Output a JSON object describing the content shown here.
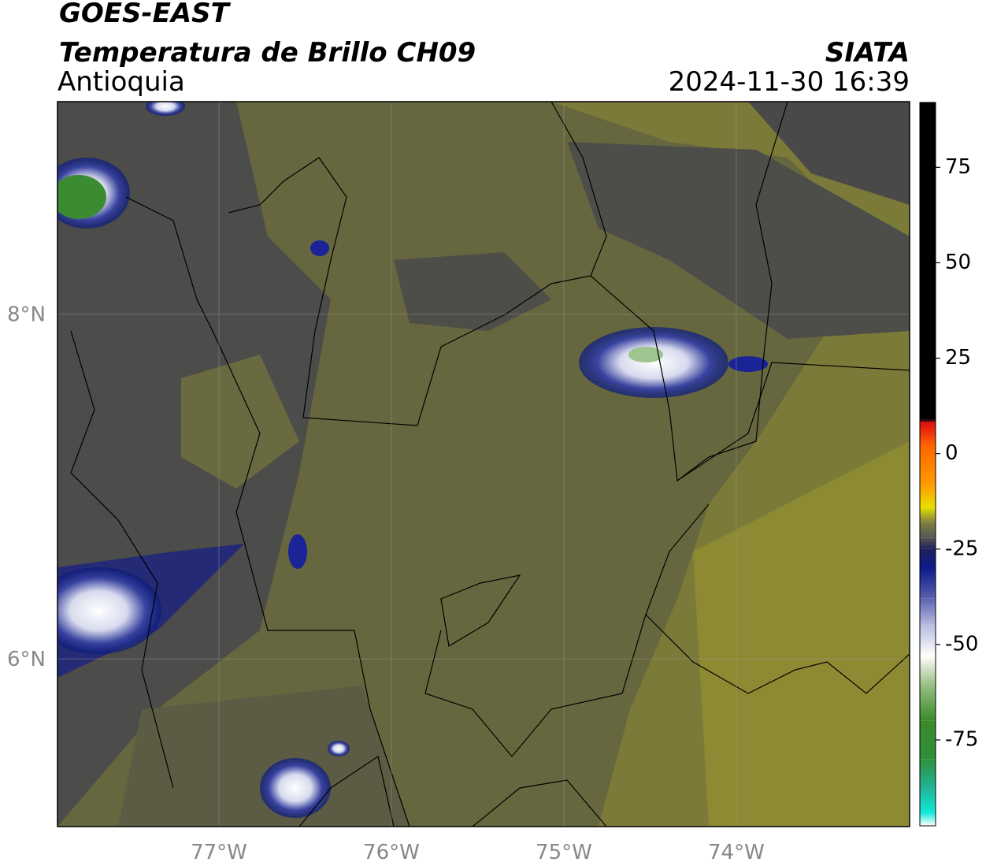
{
  "header": {
    "title": "GOES-EAST",
    "subtitle": "Temperatura de Brillo CH09",
    "region": "Antioquia",
    "source": "SIATA",
    "datetime": "2024-11-30 16:39"
  },
  "map": {
    "xlim": [
      -77.936,
      -72.995
    ],
    "ylim": [
      5.027,
      9.233
    ],
    "xticks": [
      {
        "value": -77,
        "label": "77°W"
      },
      {
        "value": -76,
        "label": "76°W"
      },
      {
        "value": -75,
        "label": "75°W"
      },
      {
        "value": -74,
        "label": "74°W"
      }
    ],
    "yticks": [
      {
        "value": 6,
        "label": "6°N"
      },
      {
        "value": 8,
        "label": "8°N"
      }
    ],
    "grid": true
  },
  "colorbar": {
    "clim": [
      -97.5,
      92
    ],
    "ticks": [
      -75,
      -50,
      -25,
      0,
      25,
      50,
      75
    ],
    "stops": [
      {
        "value": -97.5,
        "color": "#ffffff"
      },
      {
        "value": -94,
        "color": "#10e8d8"
      },
      {
        "value": -88,
        "color": "#1fb89a"
      },
      {
        "value": -80,
        "color": "#2f8f3a"
      },
      {
        "value": -70,
        "color": "#3a8a2a"
      },
      {
        "value": -60,
        "color": "#9ec48a"
      },
      {
        "value": -53,
        "color": "#ffffff"
      },
      {
        "value": -45,
        "color": "#b8bde0"
      },
      {
        "value": -38,
        "color": "#5c62b0"
      },
      {
        "value": -30,
        "color": "#0a1a8a"
      },
      {
        "value": -25,
        "color": "#20205e"
      },
      {
        "value": -22,
        "color": "#555555"
      },
      {
        "value": -18,
        "color": "#807f40"
      },
      {
        "value": -14,
        "color": "#e8e000"
      },
      {
        "value": -8,
        "color": "#ff9900"
      },
      {
        "value": 2,
        "color": "#ff6600"
      },
      {
        "value": 8,
        "color": "#e01010"
      },
      {
        "value": 9,
        "color": "#000000"
      },
      {
        "value": 92,
        "color": "#000000"
      }
    ]
  }
}
